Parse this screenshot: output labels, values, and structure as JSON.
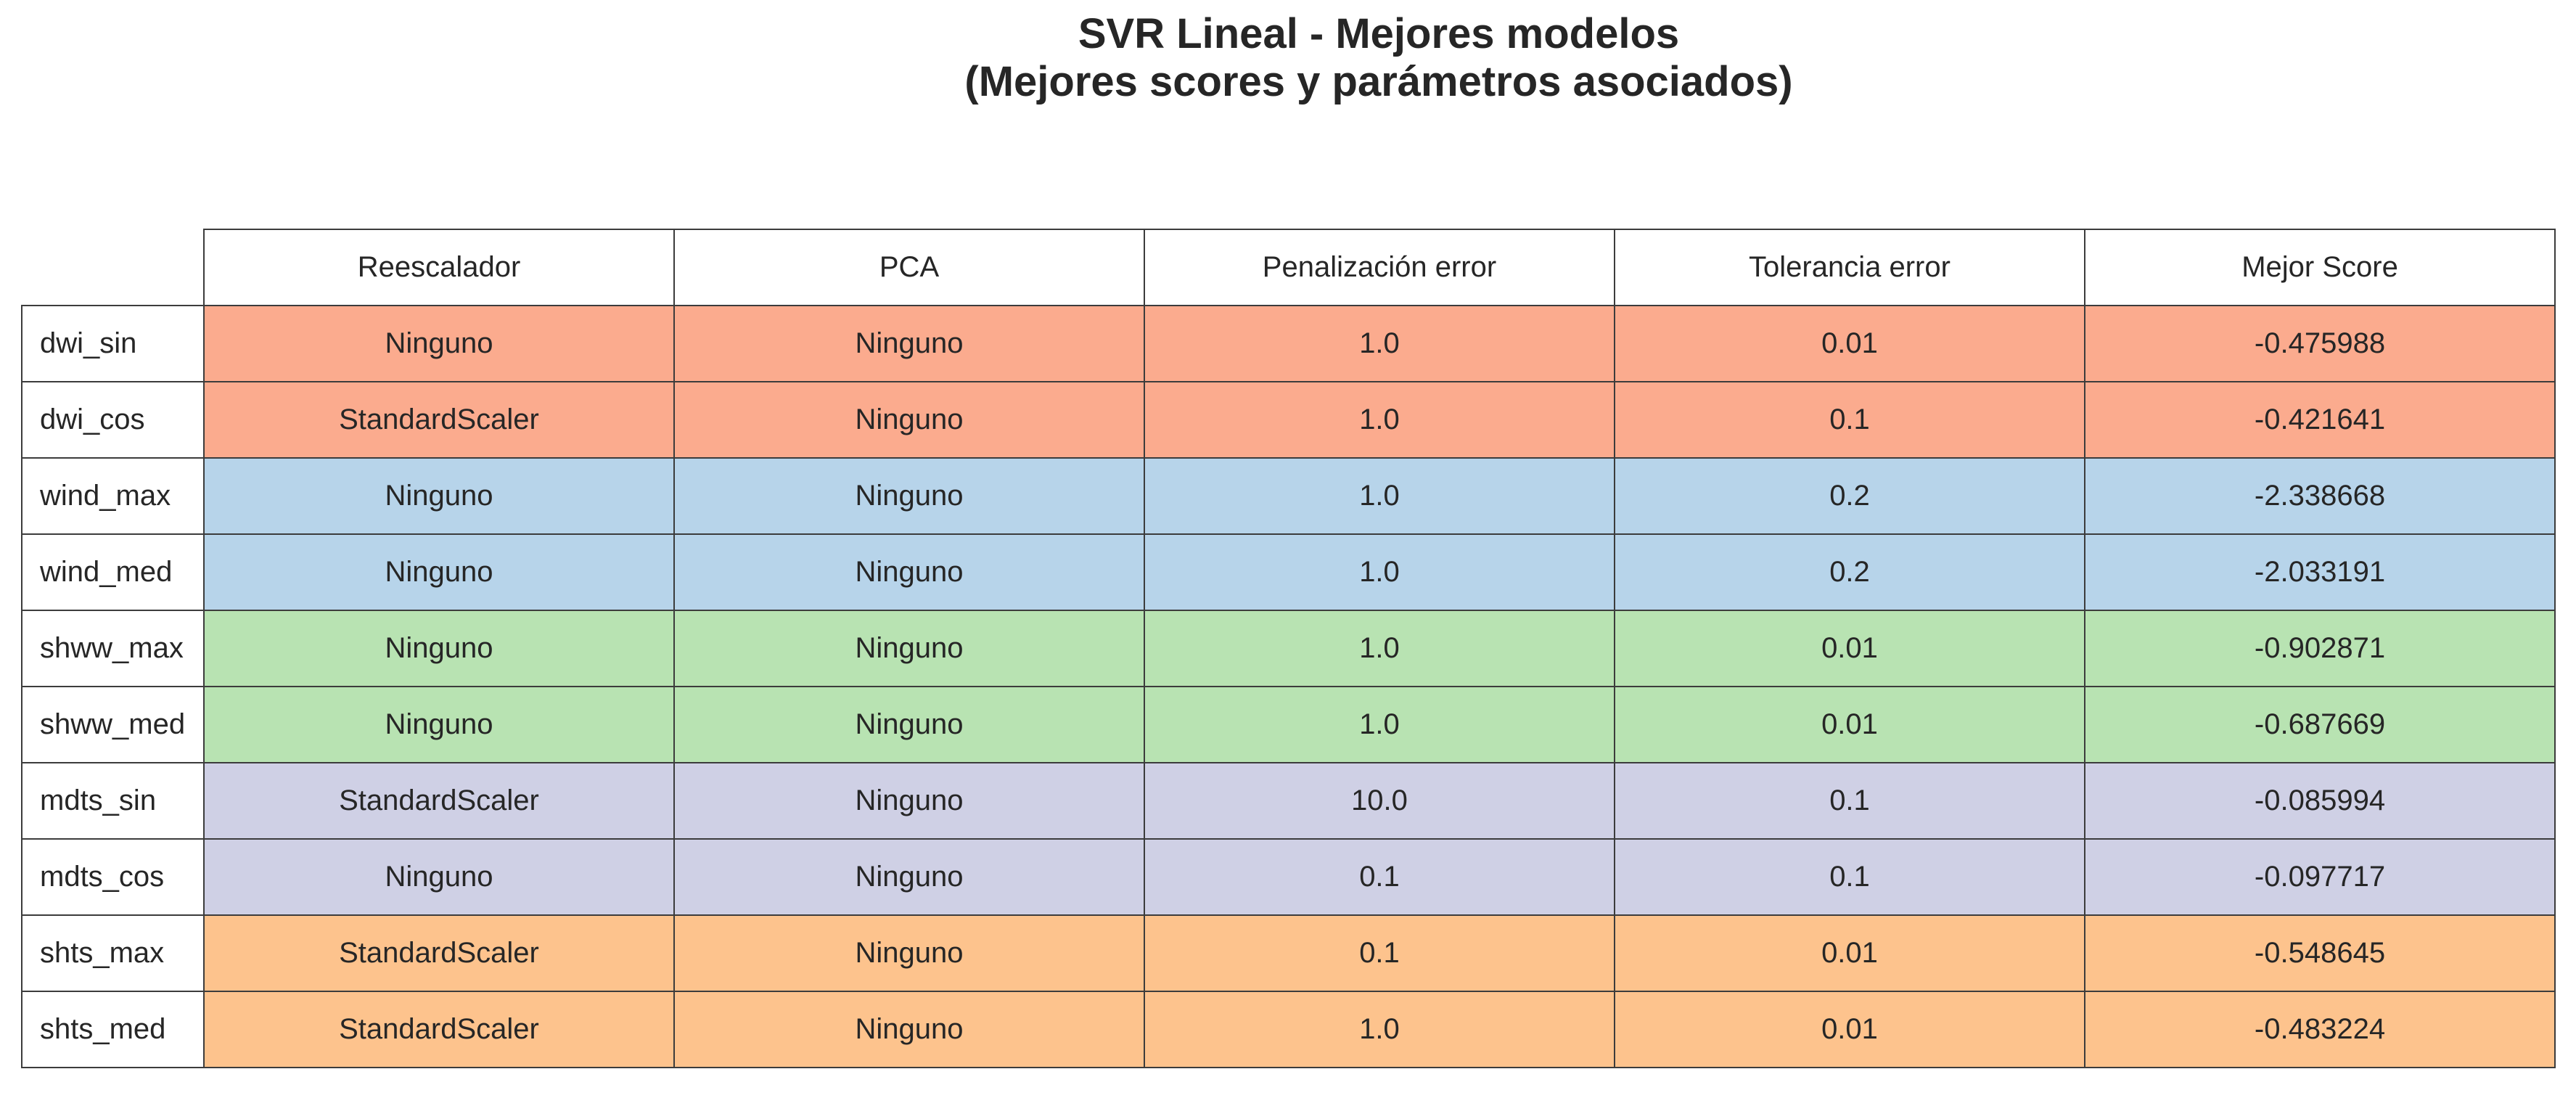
{
  "chart_data": {
    "type": "table",
    "title": [
      "SVR Lineal - Mejores modelos",
      "(Mejores scores y parámetros asociados)"
    ],
    "columns": [
      "Reescalador",
      "PCA",
      "Penalización error",
      "Tolerancia error",
      "Mejor Score"
    ],
    "rows": [
      {
        "label": "dwi_sin",
        "color": "#fbab8e",
        "cells": [
          "Ninguno",
          "Ninguno",
          "1.0",
          "0.01",
          "-0.475988"
        ]
      },
      {
        "label": "dwi_cos",
        "color": "#fbab8e",
        "cells": [
          "StandardScaler",
          "Ninguno",
          "1.0",
          "0.1",
          "-0.421641"
        ]
      },
      {
        "label": "wind_max",
        "color": "#b7d4ea",
        "cells": [
          "Ninguno",
          "Ninguno",
          "1.0",
          "0.2",
          "-2.338668"
        ]
      },
      {
        "label": "wind_med",
        "color": "#b7d4ea",
        "cells": [
          "Ninguno",
          "Ninguno",
          "1.0",
          "0.2",
          "-2.033191"
        ]
      },
      {
        "label": "shww_max",
        "color": "#b8e3b2",
        "cells": [
          "Ninguno",
          "Ninguno",
          "1.0",
          "0.01",
          "-0.902871"
        ]
      },
      {
        "label": "shww_med",
        "color": "#b8e3b2",
        "cells": [
          "Ninguno",
          "Ninguno",
          "1.0",
          "0.01",
          "-0.687669"
        ]
      },
      {
        "label": "mdts_sin",
        "color": "#cfd0e5",
        "cells": [
          "StandardScaler",
          "Ninguno",
          "10.0",
          "0.1",
          "-0.085994"
        ]
      },
      {
        "label": "mdts_cos",
        "color": "#cfd0e5",
        "cells": [
          "Ninguno",
          "Ninguno",
          "0.1",
          "0.1",
          "-0.097717"
        ]
      },
      {
        "label": "shts_max",
        "color": "#fdc38d",
        "cells": [
          "StandardScaler",
          "Ninguno",
          "0.1",
          "0.01",
          "-0.548645"
        ]
      },
      {
        "label": "shts_med",
        "color": "#fdc38d",
        "cells": [
          "StandardScaler",
          "Ninguno",
          "1.0",
          "0.01",
          "-0.483224"
        ]
      }
    ]
  }
}
